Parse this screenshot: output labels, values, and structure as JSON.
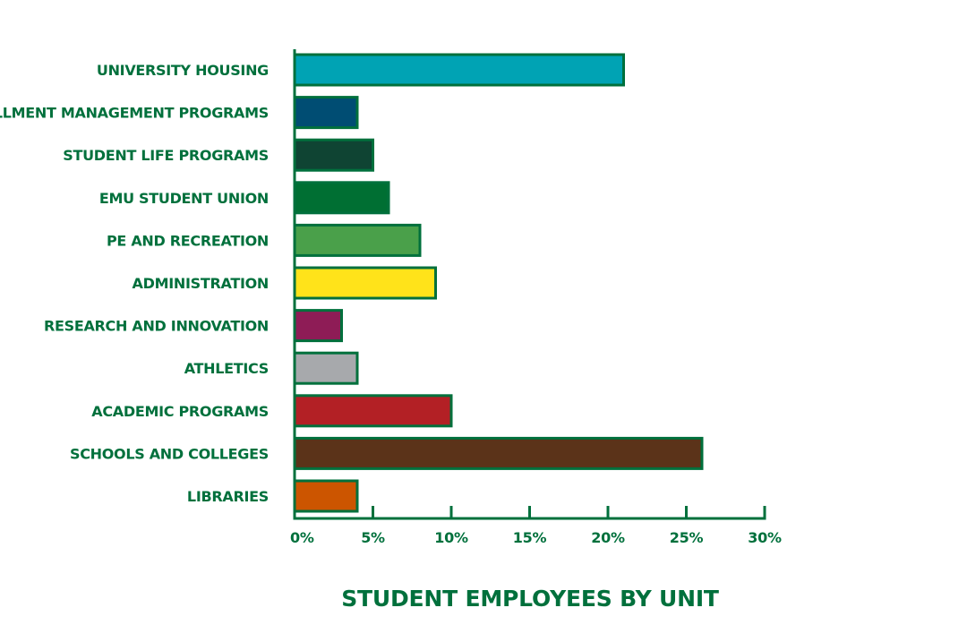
{
  "chart_data": {
    "type": "bar",
    "orientation": "horizontal",
    "title": "STUDENT EMPLOYEES BY UNIT",
    "xlabel": "",
    "ylabel": "",
    "xlim": [
      0,
      30
    ],
    "categories": [
      "UNIVERSITY HOUSING",
      "ENROLLMENT MANAGEMENT PROGRAMS",
      "STUDENT LIFE PROGRAMS",
      "EMU STUDENT UNION",
      "PE AND RECREATION",
      "ADMINISTRATION",
      "RESEARCH AND INNOVATION",
      "ATHLETICS",
      "ACADEMIC PROGRAMS",
      "SCHOOLS AND COLLEGES",
      "LIBRARIES"
    ],
    "values": [
      21,
      4,
      5,
      6,
      8,
      9,
      3,
      4,
      10,
      26,
      4
    ],
    "unit": "%",
    "bar_colors": [
      "#00a3b4",
      "#004d73",
      "#0f4433",
      "#006f33",
      "#4aa04a",
      "#ffe31a",
      "#8e1c56",
      "#a7a9ac",
      "#b32025",
      "#5b3319",
      "#cc5500"
    ],
    "x_ticks": [
      0,
      5,
      10,
      15,
      20,
      25,
      30
    ],
    "x_tick_labels": [
      "0%",
      "5%",
      "10%",
      "15%",
      "20%",
      "25%",
      "30%"
    ],
    "grid": false,
    "legend": "none",
    "text_color": "#00703c",
    "outline_color": "#00703c"
  }
}
